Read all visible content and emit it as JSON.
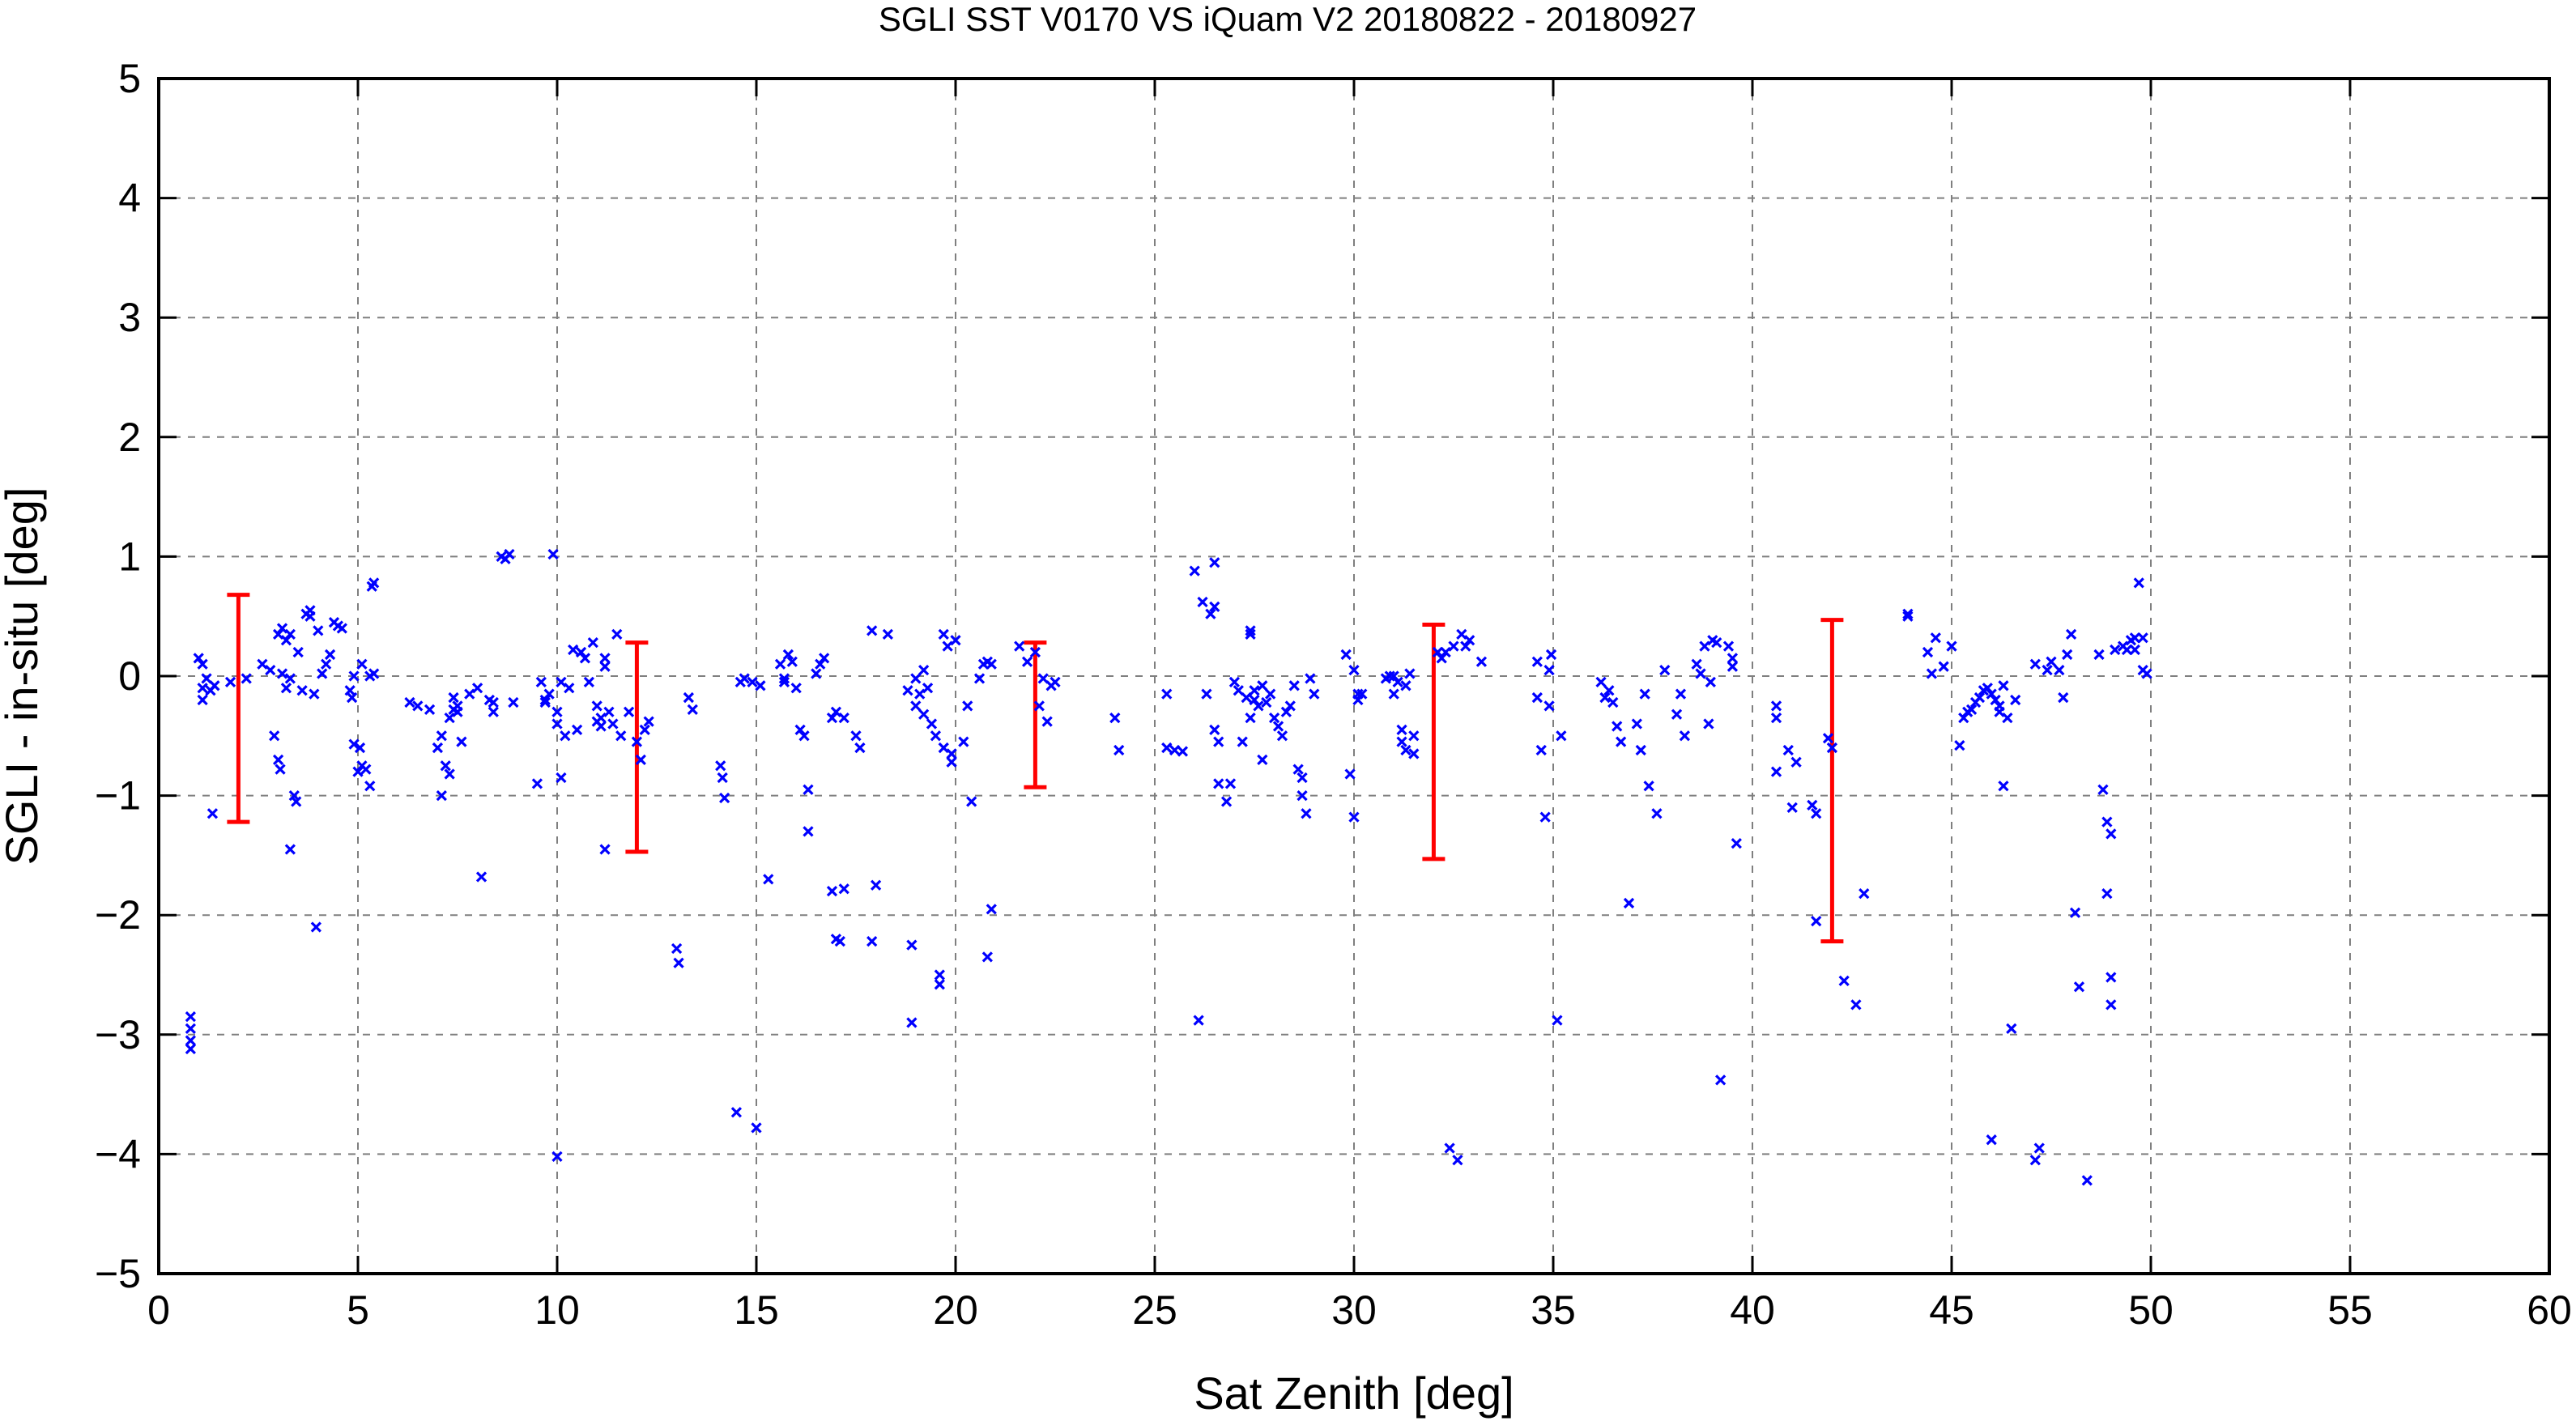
{
  "chart_data": {
    "type": "scatter",
    "title": "SGLI SST V0170 VS iQuam V2 20180822 - 20180927",
    "xlabel": "Sat Zenith [deg]",
    "ylabel": "SGLI - in-situ [deg]",
    "xlim": [
      0,
      60
    ],
    "ylim": [
      -5,
      5
    ],
    "xticks": [
      0,
      5,
      10,
      15,
      20,
      25,
      30,
      35,
      40,
      45,
      50,
      55,
      60
    ],
    "yticks": [
      -5,
      -4,
      -3,
      -2,
      -1,
      0,
      1,
      2,
      3,
      4,
      5
    ],
    "xtick_labels": [
      "0",
      "5",
      "10",
      "15",
      "20",
      "25",
      "30",
      "35",
      "40",
      "45",
      "50",
      "55",
      "60"
    ],
    "ytick_labels": [
      "−5",
      "−4",
      "−3",
      "−2",
      "−1",
      "0",
      "1",
      "2",
      "3",
      "4",
      "5"
    ],
    "grid": true,
    "colors": {
      "points": "#0000ff",
      "error_bars": "#ff0000",
      "grid": "#7f7f7f"
    },
    "points": [
      [
        0.8,
        -2.85
      ],
      [
        0.8,
        -2.95
      ],
      [
        0.8,
        -3.05
      ],
      [
        0.8,
        -3.12
      ],
      [
        1.0,
        0.15
      ],
      [
        1.1,
        0.1
      ],
      [
        1.1,
        -0.1
      ],
      [
        1.1,
        -0.2
      ],
      [
        1.2,
        -0.02
      ],
      [
        1.3,
        -0.12
      ],
      [
        1.4,
        -0.08
      ],
      [
        1.35,
        -1.15
      ],
      [
        1.8,
        -0.05
      ],
      [
        2.2,
        -0.02
      ],
      [
        2.6,
        0.1
      ],
      [
        2.8,
        0.05
      ],
      [
        2.9,
        -0.5
      ],
      [
        3.0,
        0.35
      ],
      [
        3.0,
        -0.7
      ],
      [
        3.05,
        -0.78
      ],
      [
        3.1,
        0.4
      ],
      [
        3.1,
        0.02
      ],
      [
        3.2,
        -0.1
      ],
      [
        3.2,
        0.3
      ],
      [
        3.3,
        0.35
      ],
      [
        3.3,
        -0.02
      ],
      [
        3.3,
        -1.45
      ],
      [
        3.4,
        -1.0
      ],
      [
        3.45,
        -1.05
      ],
      [
        3.5,
        0.2
      ],
      [
        3.6,
        -0.12
      ],
      [
        3.7,
        0.52
      ],
      [
        3.8,
        0.55
      ],
      [
        3.8,
        0.5
      ],
      [
        3.9,
        -0.15
      ],
      [
        3.95,
        -2.1
      ],
      [
        4.0,
        0.38
      ],
      [
        4.1,
        0.02
      ],
      [
        4.2,
        0.1
      ],
      [
        4.3,
        0.18
      ],
      [
        4.4,
        0.45
      ],
      [
        4.5,
        0.42
      ],
      [
        4.6,
        0.4
      ],
      [
        4.8,
        -0.12
      ],
      [
        4.85,
        -0.18
      ],
      [
        4.9,
        0.0
      ],
      [
        4.9,
        -0.57
      ],
      [
        5.0,
        -0.8
      ],
      [
        5.05,
        -0.6
      ],
      [
        5.1,
        -0.75
      ],
      [
        5.1,
        0.1
      ],
      [
        5.2,
        -0.78
      ],
      [
        5.3,
        0.0
      ],
      [
        5.3,
        -0.92
      ],
      [
        5.35,
        0.75
      ],
      [
        5.4,
        0.78
      ],
      [
        5.4,
        0.02
      ],
      [
        6.3,
        -0.22
      ],
      [
        6.5,
        -0.25
      ],
      [
        6.8,
        -0.28
      ],
      [
        7.0,
        -0.6
      ],
      [
        7.1,
        -0.5
      ],
      [
        7.1,
        -1.0
      ],
      [
        7.2,
        -0.75
      ],
      [
        7.3,
        -0.35
      ],
      [
        7.3,
        -0.82
      ],
      [
        7.4,
        -0.18
      ],
      [
        7.4,
        -0.28
      ],
      [
        7.5,
        -0.3
      ],
      [
        7.6,
        -0.55
      ],
      [
        7.5,
        -0.25
      ],
      [
        7.8,
        -0.15
      ],
      [
        8.0,
        -0.1
      ],
      [
        8.1,
        -1.68
      ],
      [
        8.3,
        -0.2
      ],
      [
        8.4,
        -0.22
      ],
      [
        8.4,
        -0.3
      ],
      [
        8.6,
        1.0
      ],
      [
        8.7,
        0.98
      ],
      [
        8.8,
        1.02
      ],
      [
        8.9,
        -0.22
      ],
      [
        9.5,
        -0.9
      ],
      [
        9.6,
        -0.05
      ],
      [
        9.7,
        -0.2
      ],
      [
        9.7,
        -0.22
      ],
      [
        9.8,
        -0.15
      ],
      [
        9.9,
        1.02
      ],
      [
        10.0,
        -0.3
      ],
      [
        10.0,
        -0.4
      ],
      [
        10.0,
        -4.02
      ],
      [
        10.1,
        -0.85
      ],
      [
        10.1,
        -0.05
      ],
      [
        10.2,
        -0.5
      ],
      [
        10.3,
        -0.1
      ],
      [
        10.4,
        0.22
      ],
      [
        10.5,
        -0.45
      ],
      [
        10.6,
        0.2
      ],
      [
        10.7,
        0.15
      ],
      [
        10.8,
        -0.05
      ],
      [
        10.9,
        0.28
      ],
      [
        11.0,
        -0.38
      ],
      [
        11.0,
        -0.25
      ],
      [
        11.1,
        -0.35
      ],
      [
        11.1,
        -0.42
      ],
      [
        11.2,
        0.08
      ],
      [
        11.2,
        0.15
      ],
      [
        11.2,
        -1.45
      ],
      [
        11.3,
        -0.3
      ],
      [
        11.4,
        -0.4
      ],
      [
        11.5,
        0.35
      ],
      [
        11.6,
        -0.5
      ],
      [
        11.8,
        -0.3
      ],
      [
        12.0,
        -0.55
      ],
      [
        12.1,
        -0.7
      ],
      [
        12.2,
        -0.45
      ],
      [
        12.3,
        -0.38
      ],
      [
        13.0,
        -2.28
      ],
      [
        13.05,
        -2.4
      ],
      [
        13.3,
        -0.18
      ],
      [
        13.4,
        -0.28
      ],
      [
        14.1,
        -0.75
      ],
      [
        14.15,
        -0.85
      ],
      [
        14.2,
        -1.02
      ],
      [
        14.5,
        -3.65
      ],
      [
        14.6,
        -0.05
      ],
      [
        14.7,
        -0.02
      ],
      [
        14.9,
        -0.05
      ],
      [
        15.0,
        -3.78
      ],
      [
        15.1,
        -0.08
      ],
      [
        15.3,
        -1.7
      ],
      [
        15.6,
        0.1
      ],
      [
        15.7,
        -0.02
      ],
      [
        15.7,
        -0.05
      ],
      [
        15.8,
        0.18
      ],
      [
        15.9,
        0.12
      ],
      [
        16.0,
        -0.1
      ],
      [
        16.1,
        -0.45
      ],
      [
        16.2,
        -0.5
      ],
      [
        16.3,
        -0.95
      ],
      [
        16.3,
        -1.3
      ],
      [
        16.5,
        0.02
      ],
      [
        16.6,
        0.1
      ],
      [
        16.7,
        0.15
      ],
      [
        16.9,
        -0.35
      ],
      [
        16.9,
        -1.8
      ],
      [
        17.0,
        -2.2
      ],
      [
        17.0,
        -0.3
      ],
      [
        17.1,
        -2.22
      ],
      [
        17.2,
        -0.35
      ],
      [
        17.2,
        -1.78
      ],
      [
        17.5,
        -0.5
      ],
      [
        17.6,
        -0.6
      ],
      [
        17.9,
        0.38
      ],
      [
        17.9,
        -2.22
      ],
      [
        18.0,
        -1.75
      ],
      [
        18.3,
        0.35
      ],
      [
        18.8,
        -0.12
      ],
      [
        18.9,
        -2.25
      ],
      [
        18.9,
        -2.9
      ],
      [
        19.0,
        -0.25
      ],
      [
        19.0,
        -0.02
      ],
      [
        19.1,
        -0.15
      ],
      [
        19.2,
        0.05
      ],
      [
        19.2,
        -0.32
      ],
      [
        19.3,
        -0.1
      ],
      [
        19.4,
        -0.4
      ],
      [
        19.5,
        -0.5
      ],
      [
        19.6,
        -2.5
      ],
      [
        19.6,
        -2.58
      ],
      [
        19.7,
        -0.6
      ],
      [
        19.7,
        0.35
      ],
      [
        19.8,
        0.25
      ],
      [
        19.9,
        -0.65
      ],
      [
        19.9,
        -0.72
      ],
      [
        20.0,
        0.3
      ],
      [
        20.2,
        -0.55
      ],
      [
        20.3,
        -0.25
      ],
      [
        20.4,
        -1.05
      ],
      [
        20.6,
        -0.02
      ],
      [
        20.7,
        0.1
      ],
      [
        20.8,
        -2.35
      ],
      [
        20.8,
        0.12
      ],
      [
        20.9,
        -1.95
      ],
      [
        20.9,
        0.1
      ],
      [
        21.6,
        0.25
      ],
      [
        21.8,
        0.12
      ],
      [
        22.0,
        0.2
      ],
      [
        22.1,
        -0.25
      ],
      [
        22.2,
        -0.02
      ],
      [
        22.3,
        -0.38
      ],
      [
        22.4,
        -0.08
      ],
      [
        22.5,
        -0.05
      ],
      [
        24.0,
        -0.35
      ],
      [
        24.1,
        -0.62
      ],
      [
        25.3,
        -0.15
      ],
      [
        25.3,
        -0.6
      ],
      [
        25.5,
        -0.62
      ],
      [
        25.7,
        -0.63
      ],
      [
        26.0,
        0.88
      ],
      [
        26.1,
        -2.88
      ],
      [
        26.2,
        0.62
      ],
      [
        26.3,
        -0.15
      ],
      [
        26.4,
        0.52
      ],
      [
        26.5,
        0.95
      ],
      [
        26.5,
        0.58
      ],
      [
        26.5,
        -0.45
      ],
      [
        26.6,
        -0.55
      ],
      [
        26.6,
        -0.9
      ],
      [
        26.8,
        -1.05
      ],
      [
        26.9,
        -0.9
      ],
      [
        27.0,
        -0.05
      ],
      [
        27.1,
        -0.12
      ],
      [
        27.2,
        -0.55
      ],
      [
        27.3,
        -0.18
      ],
      [
        27.4,
        0.38
      ],
      [
        27.4,
        0.35
      ],
      [
        27.4,
        -0.35
      ],
      [
        27.5,
        -0.12
      ],
      [
        27.5,
        -0.2
      ],
      [
        27.6,
        -0.25
      ],
      [
        27.7,
        -0.7
      ],
      [
        27.7,
        -0.08
      ],
      [
        27.8,
        -0.22
      ],
      [
        27.9,
        -0.15
      ],
      [
        28.0,
        -0.35
      ],
      [
        28.1,
        -0.42
      ],
      [
        28.2,
        -0.5
      ],
      [
        28.3,
        -0.3
      ],
      [
        28.4,
        -0.25
      ],
      [
        28.5,
        -0.08
      ],
      [
        28.6,
        -0.78
      ],
      [
        28.7,
        -0.85
      ],
      [
        28.7,
        -1.0
      ],
      [
        28.8,
        -1.15
      ],
      [
        28.9,
        -0.02
      ],
      [
        29.0,
        -0.15
      ],
      [
        29.8,
        0.18
      ],
      [
        29.9,
        -0.82
      ],
      [
        30.0,
        0.05
      ],
      [
        30.0,
        -1.18
      ],
      [
        30.1,
        -0.15
      ],
      [
        30.1,
        -0.2
      ],
      [
        30.2,
        -0.15
      ],
      [
        30.8,
        -0.02
      ],
      [
        30.9,
        0.0
      ],
      [
        31.0,
        0.0
      ],
      [
        31.0,
        -0.15
      ],
      [
        31.1,
        -0.05
      ],
      [
        31.2,
        -0.45
      ],
      [
        31.2,
        -0.55
      ],
      [
        31.3,
        -0.62
      ],
      [
        31.3,
        -0.08
      ],
      [
        31.4,
        0.02
      ],
      [
        31.5,
        -0.5
      ],
      [
        31.5,
        -0.65
      ],
      [
        32.3,
        0.2
      ],
      [
        32.4,
        -3.95
      ],
      [
        32.5,
        0.25
      ],
      [
        32.6,
        -4.05
      ],
      [
        32.7,
        0.35
      ],
      [
        32.8,
        0.25
      ],
      [
        32.9,
        0.3
      ],
      [
        33.2,
        0.12
      ],
      [
        32.1,
        0.2
      ],
      [
        32.2,
        0.15
      ],
      [
        34.6,
        0.12
      ],
      [
        34.6,
        -0.18
      ],
      [
        34.7,
        -0.62
      ],
      [
        34.8,
        -1.18
      ],
      [
        34.9,
        0.05
      ],
      [
        34.9,
        -0.25
      ],
      [
        34.95,
        0.18
      ],
      [
        35.1,
        -2.88
      ],
      [
        35.2,
        -0.5
      ],
      [
        36.2,
        -0.05
      ],
      [
        36.3,
        -0.18
      ],
      [
        36.4,
        -0.12
      ],
      [
        36.5,
        -0.22
      ],
      [
        36.6,
        -0.42
      ],
      [
        36.7,
        -0.55
      ],
      [
        36.9,
        -1.9
      ],
      [
        37.1,
        -0.4
      ],
      [
        37.2,
        -0.62
      ],
      [
        37.3,
        -0.15
      ],
      [
        37.4,
        -0.92
      ],
      [
        37.6,
        -1.15
      ],
      [
        37.8,
        0.05
      ],
      [
        38.1,
        -0.32
      ],
      [
        38.2,
        -0.15
      ],
      [
        38.3,
        -0.5
      ],
      [
        38.6,
        0.1
      ],
      [
        38.7,
        0.02
      ],
      [
        38.8,
        0.25
      ],
      [
        38.9,
        -0.4
      ],
      [
        38.95,
        -0.05
      ],
      [
        39.0,
        0.3
      ],
      [
        39.1,
        0.28
      ],
      [
        39.4,
        0.25
      ],
      [
        39.5,
        0.15
      ],
      [
        39.5,
        0.08
      ],
      [
        39.2,
        -3.38
      ],
      [
        39.6,
        -1.4
      ],
      [
        40.6,
        -0.25
      ],
      [
        40.6,
        -0.35
      ],
      [
        40.6,
        -0.8
      ],
      [
        40.9,
        -0.62
      ],
      [
        41.0,
        -1.1
      ],
      [
        41.1,
        -0.72
      ],
      [
        41.5,
        -1.08
      ],
      [
        41.6,
        -1.15
      ],
      [
        41.6,
        -2.05
      ],
      [
        41.9,
        -0.52
      ],
      [
        42.0,
        -0.6
      ],
      [
        42.3,
        -2.55
      ],
      [
        42.6,
        -2.75
      ],
      [
        42.8,
        -1.82
      ],
      [
        43.9,
        0.52
      ],
      [
        43.9,
        0.5
      ],
      [
        44.4,
        0.2
      ],
      [
        44.5,
        0.02
      ],
      [
        44.6,
        0.32
      ],
      [
        44.8,
        0.08
      ],
      [
        45.0,
        0.25
      ],
      [
        45.2,
        -0.58
      ],
      [
        45.3,
        -0.35
      ],
      [
        45.4,
        -0.3
      ],
      [
        45.5,
        -0.28
      ],
      [
        45.6,
        -0.22
      ],
      [
        45.7,
        -0.18
      ],
      [
        45.8,
        -0.12
      ],
      [
        45.9,
        -0.1
      ],
      [
        46.0,
        -0.15
      ],
      [
        46.1,
        -0.2
      ],
      [
        46.2,
        -0.25
      ],
      [
        46.2,
        -0.3
      ],
      [
        46.3,
        -0.08
      ],
      [
        46.3,
        -0.92
      ],
      [
        46.4,
        -0.35
      ],
      [
        46.6,
        -0.2
      ],
      [
        46.0,
        -3.88
      ],
      [
        46.5,
        -2.95
      ],
      [
        47.1,
        0.1
      ],
      [
        47.1,
        -4.05
      ],
      [
        47.2,
        -3.95
      ],
      [
        47.4,
        0.05
      ],
      [
        47.5,
        0.12
      ],
      [
        47.7,
        0.05
      ],
      [
        47.8,
        -0.18
      ],
      [
        47.9,
        0.18
      ],
      [
        48.0,
        0.35
      ],
      [
        48.1,
        -1.98
      ],
      [
        48.2,
        -2.6
      ],
      [
        48.4,
        -4.22
      ],
      [
        48.7,
        0.18
      ],
      [
        48.8,
        -0.95
      ],
      [
        48.9,
        -1.82
      ],
      [
        48.9,
        -1.22
      ],
      [
        49.0,
        -2.75
      ],
      [
        49.0,
        -2.52
      ],
      [
        49.0,
        -1.32
      ],
      [
        49.1,
        0.22
      ],
      [
        49.3,
        0.25
      ],
      [
        49.4,
        0.22
      ],
      [
        49.5,
        0.3
      ],
      [
        49.6,
        0.22
      ],
      [
        49.6,
        0.32
      ],
      [
        49.7,
        0.78
      ],
      [
        49.8,
        0.32
      ],
      [
        49.8,
        0.05
      ],
      [
        49.9,
        0.02
      ]
    ],
    "error_bars": [
      {
        "x": 2,
        "low": -1.22,
        "high": 0.68
      },
      {
        "x": 12,
        "low": -1.47,
        "high": 0.28
      },
      {
        "x": 22,
        "low": -0.93,
        "high": 0.28
      },
      {
        "x": 32,
        "low": -1.53,
        "high": 0.43
      },
      {
        "x": 42,
        "low": -2.22,
        "high": 0.47
      }
    ]
  }
}
